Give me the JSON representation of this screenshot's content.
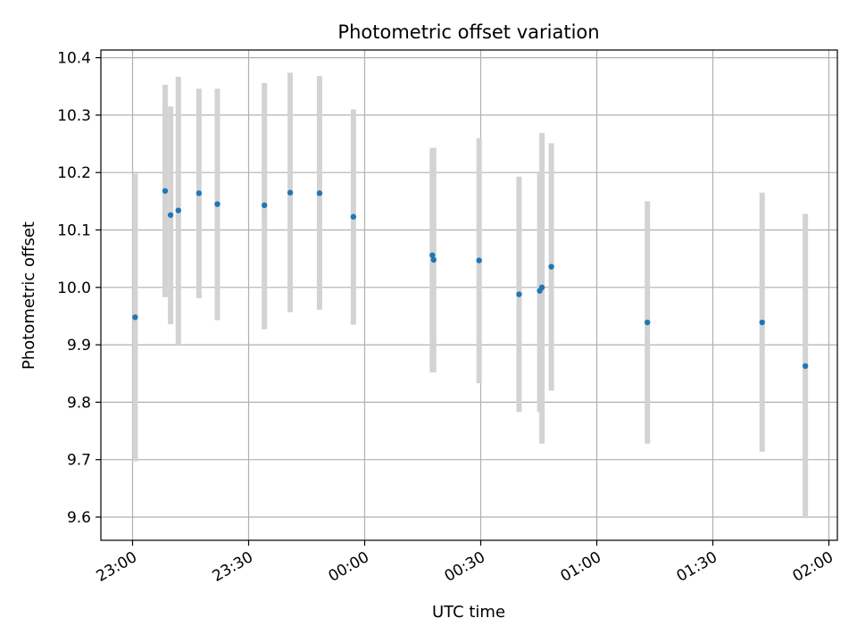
{
  "chart_data": {
    "type": "scatter",
    "title": "Photometric offset variation",
    "xlabel": "UTC time",
    "ylabel": "Photometric offset",
    "x_ticks": [
      "23:00",
      "23:30",
      "00:00",
      "00:30",
      "01:00",
      "01:30",
      "02:00"
    ],
    "y_ticks": [
      "9.6",
      "9.7",
      "9.8",
      "9.9",
      "10.0",
      "10.1",
      "10.2",
      "10.3",
      "10.4"
    ],
    "grid": true,
    "colors": {
      "point": "#1f77b4",
      "errorbar": "#d3d3d3",
      "grid": "#b0b0b0"
    },
    "points": [
      {
        "t": "23:00:40",
        "y": 9.948,
        "ylow": 9.697,
        "yhigh": 10.198
      },
      {
        "t": "23:08:25",
        "y": 10.168,
        "ylow": 9.983,
        "yhigh": 10.353
      },
      {
        "t": "23:09:50",
        "y": 10.126,
        "ylow": 9.936,
        "yhigh": 10.315
      },
      {
        "t": "23:11:50",
        "y": 10.134,
        "ylow": 9.9,
        "yhigh": 10.367
      },
      {
        "t": "23:17:10",
        "y": 10.164,
        "ylow": 9.981,
        "yhigh": 10.346
      },
      {
        "t": "23:21:55",
        "y": 10.145,
        "ylow": 9.943,
        "yhigh": 10.346
      },
      {
        "t": "23:34:05",
        "y": 10.143,
        "ylow": 9.927,
        "yhigh": 10.356
      },
      {
        "t": "23:40:45",
        "y": 10.165,
        "ylow": 9.957,
        "yhigh": 10.374
      },
      {
        "t": "23:48:20",
        "y": 10.164,
        "ylow": 9.961,
        "yhigh": 10.368
      },
      {
        "t": "23:57:05",
        "y": 10.123,
        "ylow": 9.935,
        "yhigh": 10.31
      },
      {
        "t": "00:17:30",
        "y": 10.056,
        "ylow": 9.852,
        "yhigh": 10.243
      },
      {
        "t": "00:17:50",
        "y": 10.048,
        "ylow": 9.852,
        "yhigh": 10.243
      },
      {
        "t": "00:29:35",
        "y": 10.047,
        "ylow": 9.833,
        "yhigh": 10.26
      },
      {
        "t": "00:39:55",
        "y": 9.988,
        "ylow": 9.783,
        "yhigh": 10.193
      },
      {
        "t": "00:45:15",
        "y": 9.994,
        "ylow": 9.783,
        "yhigh": 10.2
      },
      {
        "t": "00:45:50",
        "y": 10.0,
        "ylow": 9.728,
        "yhigh": 10.269
      },
      {
        "t": "00:48:15",
        "y": 10.036,
        "ylow": 9.82,
        "yhigh": 10.251
      },
      {
        "t": "01:13:05",
        "y": 9.939,
        "ylow": 9.728,
        "yhigh": 10.15
      },
      {
        "t": "01:42:45",
        "y": 9.939,
        "ylow": 9.714,
        "yhigh": 10.165
      },
      {
        "t": "01:53:55",
        "y": 9.863,
        "ylow": 9.598,
        "yhigh": 10.128
      }
    ]
  }
}
